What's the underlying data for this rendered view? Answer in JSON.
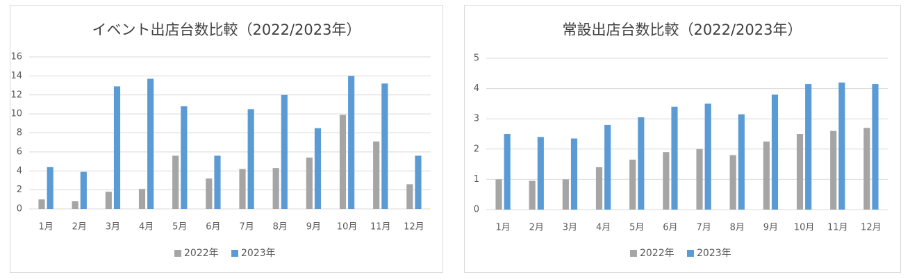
{
  "chart_data": [
    {
      "type": "bar",
      "title": "イベント出店台数比較（2022/2023年）",
      "categories": [
        "1月",
        "2月",
        "3月",
        "4月",
        "5月",
        "6月",
        "7月",
        "8月",
        "9月",
        "10月",
        "11月",
        "12月"
      ],
      "series": [
        {
          "name": "2022年",
          "color": "#a5a5a5",
          "values": [
            1.0,
            0.8,
            1.8,
            2.1,
            5.6,
            3.2,
            4.2,
            4.3,
            5.4,
            9.9,
            7.1,
            2.6
          ]
        },
        {
          "name": "2023年",
          "color": "#5b9bd5",
          "values": [
            4.4,
            3.9,
            12.9,
            13.7,
            10.8,
            5.6,
            10.5,
            12.0,
            8.5,
            14.0,
            13.2,
            5.6
          ]
        }
      ],
      "ylim": [
        0,
        16
      ],
      "yticks": [
        0,
        2,
        4,
        6,
        8,
        10,
        12,
        14,
        16
      ],
      "grid": true,
      "legend": "bottom"
    },
    {
      "type": "bar",
      "title": "常設出店台数比較（2022/2023年）",
      "categories": [
        "1月",
        "2月",
        "3月",
        "4月",
        "5月",
        "6月",
        "7月",
        "8月",
        "9月",
        "10月",
        "11月",
        "12月"
      ],
      "series": [
        {
          "name": "2022年",
          "color": "#a5a5a5",
          "values": [
            1.0,
            0.95,
            1.0,
            1.4,
            1.65,
            1.9,
            2.0,
            1.8,
            2.25,
            2.5,
            2.6,
            2.7
          ]
        },
        {
          "name": "2023年",
          "color": "#5b9bd5",
          "values": [
            2.5,
            2.4,
            2.35,
            2.8,
            3.05,
            3.4,
            3.5,
            3.15,
            3.8,
            4.15,
            4.2,
            4.15
          ]
        }
      ],
      "ylim": [
        0,
        5
      ],
      "yticks": [
        0,
        1,
        2,
        3,
        4,
        5
      ],
      "grid": true,
      "legend": "bottom"
    }
  ]
}
